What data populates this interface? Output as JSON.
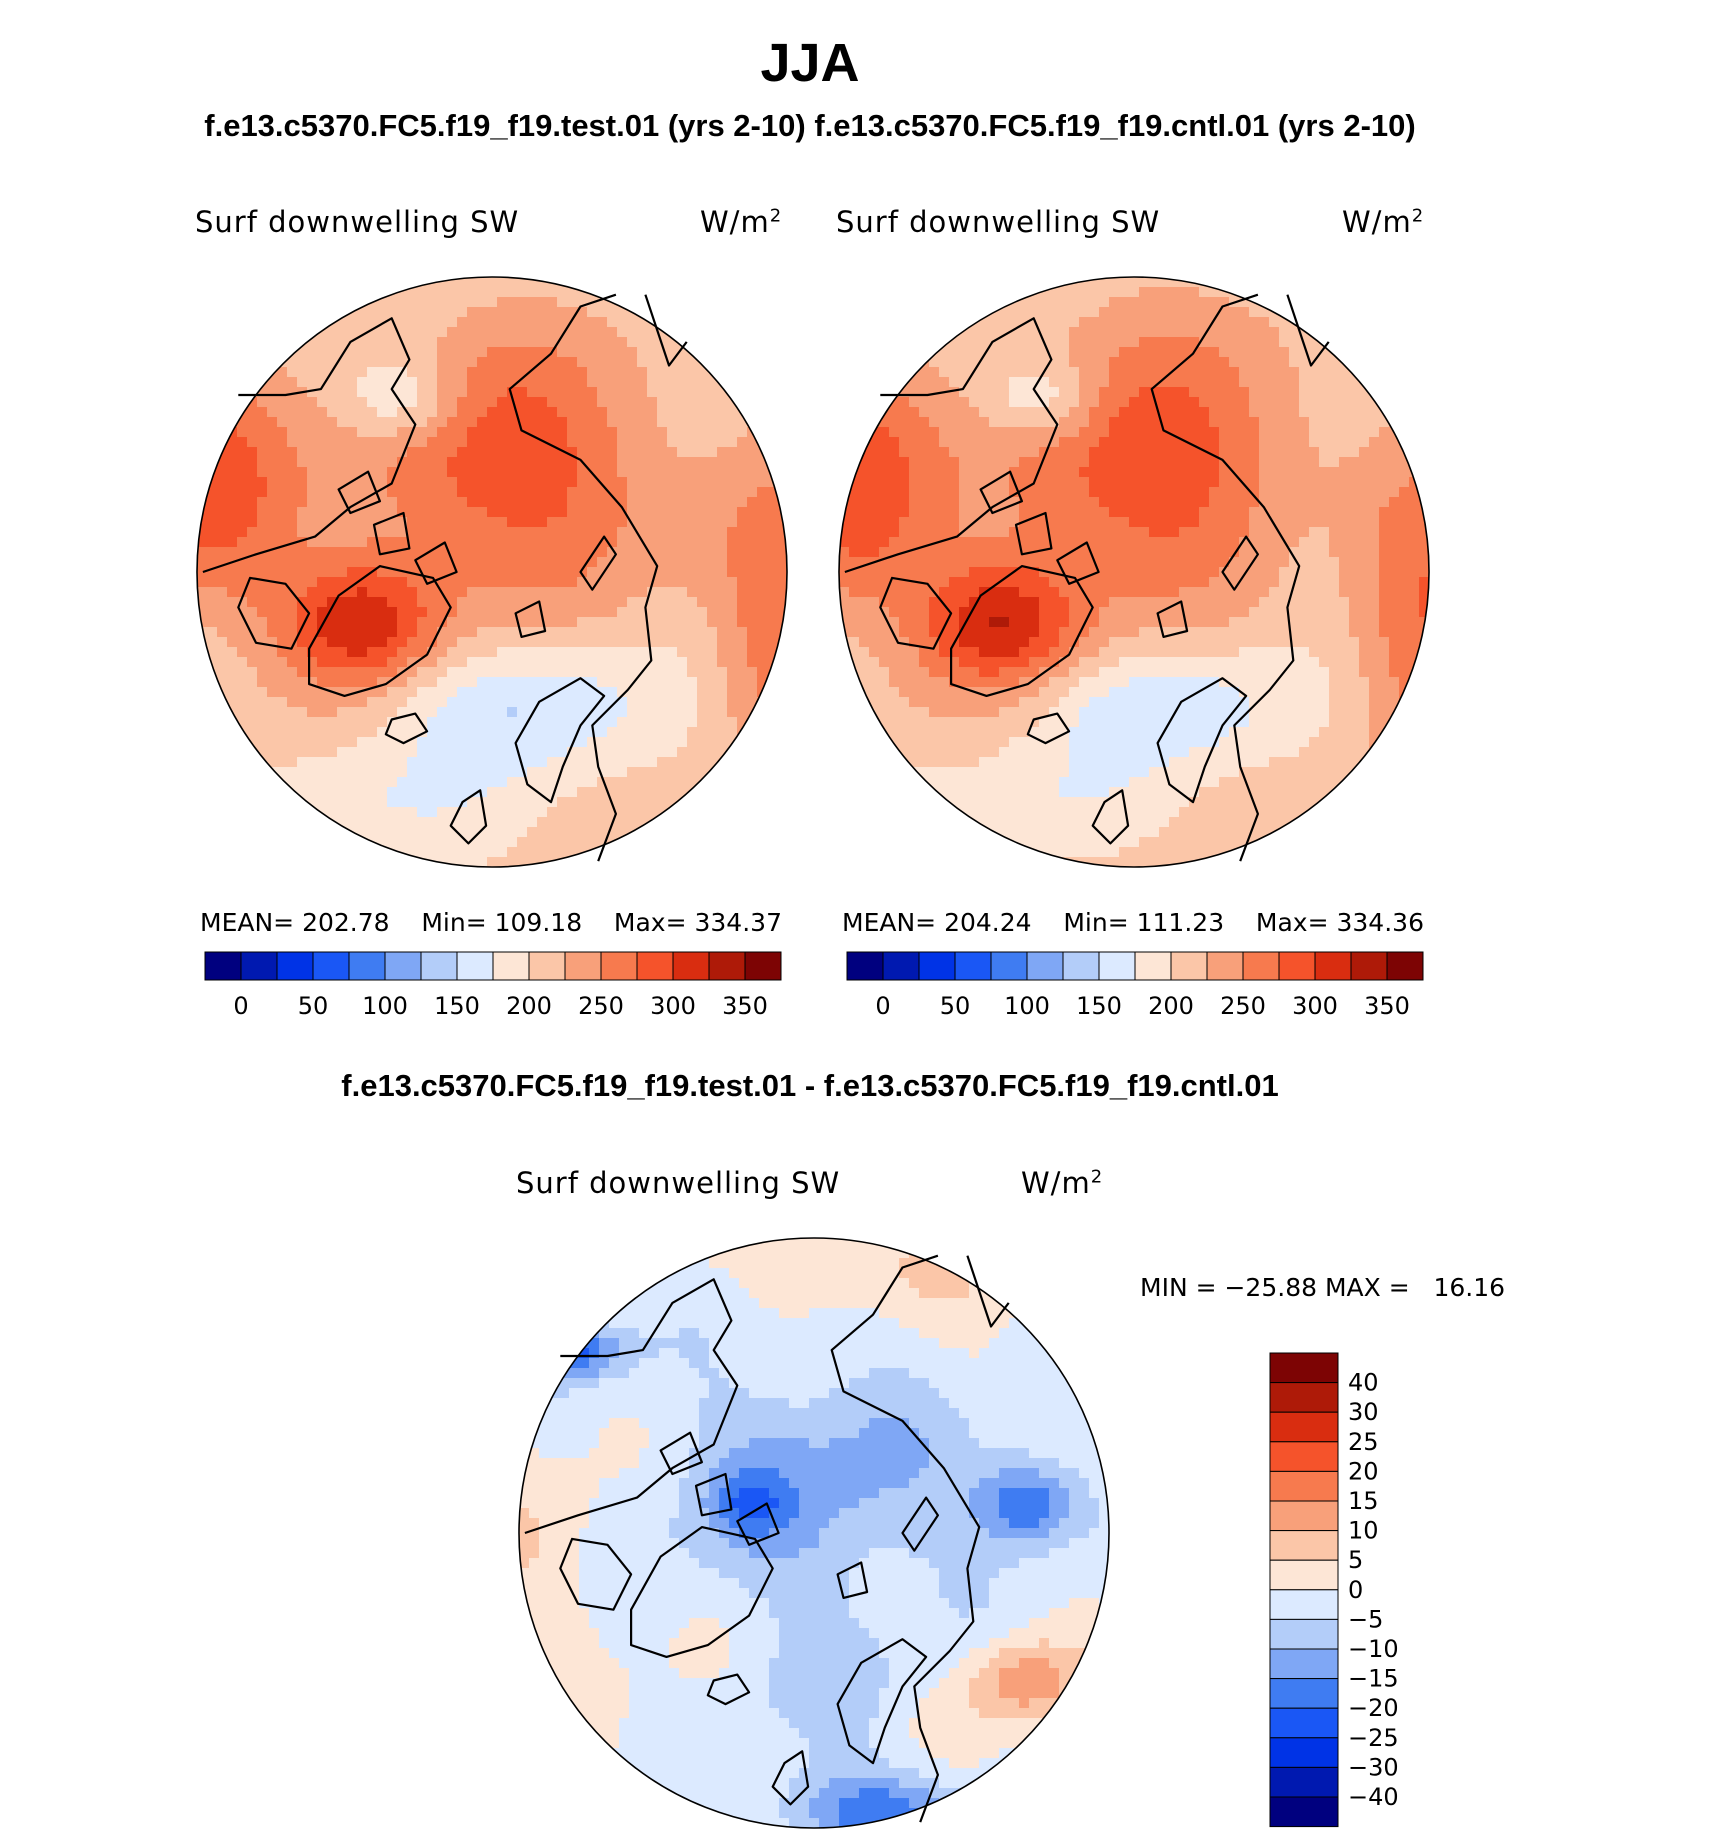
{
  "header": {
    "season": "JJA",
    "case_left": "f.e13.c5370.FC5.f19_f19.test.01 (yrs 2-10)",
    "case_right": "f.e13.c5370.FC5.f19_f19.cntl.01 (yrs 2-10)",
    "diff_title": "f.e13.c5370.FC5.f19_f19.test.01 - f.e13.c5370.FC5.f19_f19.cntl.01"
  },
  "chart_data": [
    {
      "type": "heatmap",
      "projection": "north-polar-stereographic",
      "variable": "Surf downwelling SW",
      "units_base": "W/m",
      "units_exp": "2",
      "stats": {
        "mean_label": "MEAN=",
        "mean": "202.78",
        "min_label": "Min=",
        "min": "109.18",
        "max_label": "Max=",
        "max": "334.37"
      },
      "colorbar": {
        "orientation": "horizontal",
        "levels": [
          0,
          25,
          50,
          75,
          100,
          125,
          150,
          175,
          200,
          225,
          250,
          275,
          300,
          325,
          350
        ],
        "tick_labels": [
          "0",
          "50",
          "100",
          "150",
          "200",
          "250",
          "300",
          "350"
        ],
        "colors": [
          "#00007f",
          "#0019b0",
          "#0033e6",
          "#1a57f5",
          "#3f7cf2",
          "#7fa7f5",
          "#b3cdf9",
          "#dceaff",
          "#fde6d6",
          "#fbc6a8",
          "#f8a07a",
          "#f77a4e",
          "#f5532b",
          "#d92d10",
          "#ae1a08",
          "#7d0404"
        ]
      },
      "field_summary": {
        "greenland_peak": 334.37,
        "central_arctic": 275,
        "north_atlantic_low": 130,
        "pacific_midlat": 215
      }
    },
    {
      "type": "heatmap",
      "projection": "north-polar-stereographic",
      "variable": "Surf downwelling SW",
      "units_base": "W/m",
      "units_exp": "2",
      "stats": {
        "mean_label": "MEAN=",
        "mean": "204.24",
        "min_label": "Min=",
        "min": "111.23",
        "max_label": "Max=",
        "max": "334.36"
      },
      "colorbar": {
        "orientation": "horizontal",
        "levels": [
          0,
          25,
          50,
          75,
          100,
          125,
          150,
          175,
          200,
          225,
          250,
          275,
          300,
          325,
          350
        ],
        "tick_labels": [
          "0",
          "50",
          "100",
          "150",
          "200",
          "250",
          "300",
          "350"
        ],
        "colors": [
          "#00007f",
          "#0019b0",
          "#0033e6",
          "#1a57f5",
          "#3f7cf2",
          "#7fa7f5",
          "#b3cdf9",
          "#dceaff",
          "#fde6d6",
          "#fbc6a8",
          "#f8a07a",
          "#f77a4e",
          "#f5532b",
          "#d92d10",
          "#ae1a08",
          "#7d0404"
        ]
      },
      "field_summary": {
        "greenland_peak": 334.36,
        "central_arctic": 285,
        "north_atlantic_low": 135,
        "pacific_midlat": 220
      }
    },
    {
      "type": "heatmap",
      "projection": "north-polar-stereographic",
      "variable": "Surf downwelling SW",
      "units_base": "W/m",
      "units_exp": "2",
      "stats": {
        "text": "MIN = −25.88 MAX =   16.16",
        "min": -25.88,
        "max": 16.16
      },
      "colorbar": {
        "orientation": "vertical",
        "levels": [
          -40,
          -30,
          -25,
          -20,
          -15,
          -10,
          -5,
          0,
          5,
          10,
          15,
          20,
          25,
          30,
          40
        ],
        "tick_labels": [
          "40",
          "30",
          "25",
          "20",
          "15",
          "10",
          "5",
          "0",
          "−5",
          "−10",
          "−15",
          "−20",
          "−25",
          "−30",
          "−40"
        ],
        "colors_top_to_bottom": [
          "#7d0404",
          "#ae1a08",
          "#d92d10",
          "#f5532b",
          "#f77a4e",
          "#f8a07a",
          "#fbc6a8",
          "#fde6d6",
          "#dceaff",
          "#b3cdf9",
          "#7fa7f5",
          "#3f7cf2",
          "#1a57f5",
          "#0033e6",
          "#0019b0",
          "#00007f"
        ]
      },
      "field_summary": {
        "arctic_ocean": -10,
        "kara_sea": -20,
        "alaska_pacific": -25,
        "eastern_siberia": 10,
        "greenland": 0
      }
    }
  ]
}
